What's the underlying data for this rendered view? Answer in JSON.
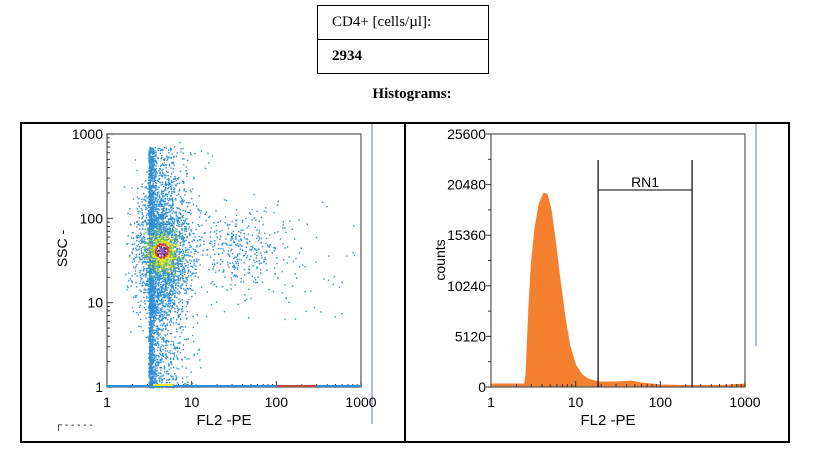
{
  "table": {
    "label": "CD4+ [cells/µl]:",
    "value": "2934"
  },
  "heading": "Histograms:",
  "chart_data": [
    {
      "type": "scatter",
      "xlabel": "FL2 -PE",
      "ylabel": "SSC -",
      "xscale": "log",
      "yscale": "log",
      "xlim": [
        1,
        1000
      ],
      "ylim": [
        1,
        1000
      ],
      "xticks": [
        "1",
        "10",
        "100",
        "1000"
      ],
      "yticks": [
        "1",
        "10",
        "100",
        "1000"
      ],
      "populations": [
        {
          "center_x": 4.5,
          "center_y": 40,
          "note": "dense"
        },
        {
          "center_x": 40,
          "center_y": 40,
          "note": "sparse"
        }
      ],
      "colors": [
        "#2f8fd6",
        "#7dc242",
        "#f2e52a",
        "#e8321e",
        "#000000"
      ]
    },
    {
      "type": "area",
      "xlabel": "FL2 -PE",
      "ylabel": "counts",
      "xscale": "log",
      "xlim": [
        1,
        1000
      ],
      "ylim": [
        0,
        25600
      ],
      "xticks": [
        "1",
        "10",
        "100",
        "1000"
      ],
      "yticks": [
        "0",
        "5120",
        "10240",
        "15360",
        "20480",
        "25600"
      ],
      "x": [
        1,
        2.5,
        2.6,
        2.8,
        3,
        3.3,
        3.7,
        4.2,
        4.6,
        5.1,
        5.7,
        6.5,
        7.5,
        8.5,
        10,
        12,
        14,
        17,
        20,
        30,
        45,
        60,
        100,
        200,
        500,
        1000
      ],
      "y": [
        300,
        300,
        1500,
        8000,
        12500,
        16000,
        18500,
        19600,
        19500,
        18000,
        15000,
        11000,
        7000,
        4200,
        2200,
        1200,
        800,
        600,
        500,
        500,
        600,
        400,
        200,
        150,
        150,
        300
      ],
      "color": "#f47f2f",
      "gate": {
        "label": "RN1",
        "from": 18.4,
        "to": 237
      }
    }
  ]
}
